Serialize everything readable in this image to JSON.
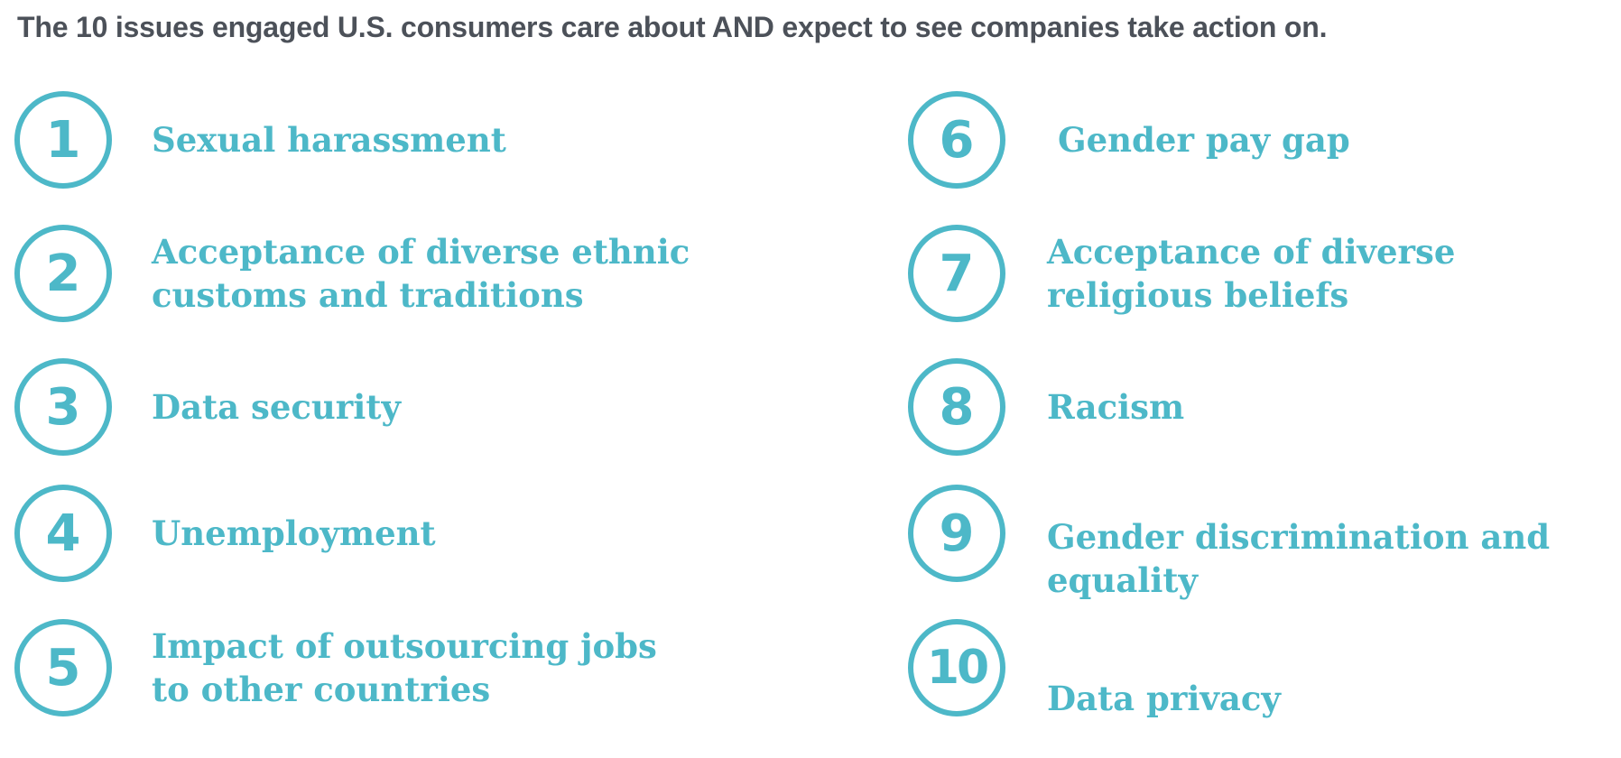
{
  "title": "The 10 issues engaged U.S. consumers care about AND expect to see companies take action on.",
  "accent_color": "#4db8c8",
  "issues": [
    {
      "number": "1",
      "label": "Sexual harassment"
    },
    {
      "number": "2",
      "label": "Acceptance of diverse ethnic customs and traditions"
    },
    {
      "number": "3",
      "label": "Data security"
    },
    {
      "number": "4",
      "label": "Unemployment"
    },
    {
      "number": "5",
      "label": "Impact of outsourcing jobs to other countries"
    },
    {
      "number": "6",
      "label": "Gender pay gap"
    },
    {
      "number": "7",
      "label": "Acceptance of diverse religious beliefs"
    },
    {
      "number": "8",
      "label": "Racism"
    },
    {
      "number": "9",
      "label": "Gender discrimination and equality"
    },
    {
      "number": "10",
      "label": "Data privacy"
    }
  ]
}
